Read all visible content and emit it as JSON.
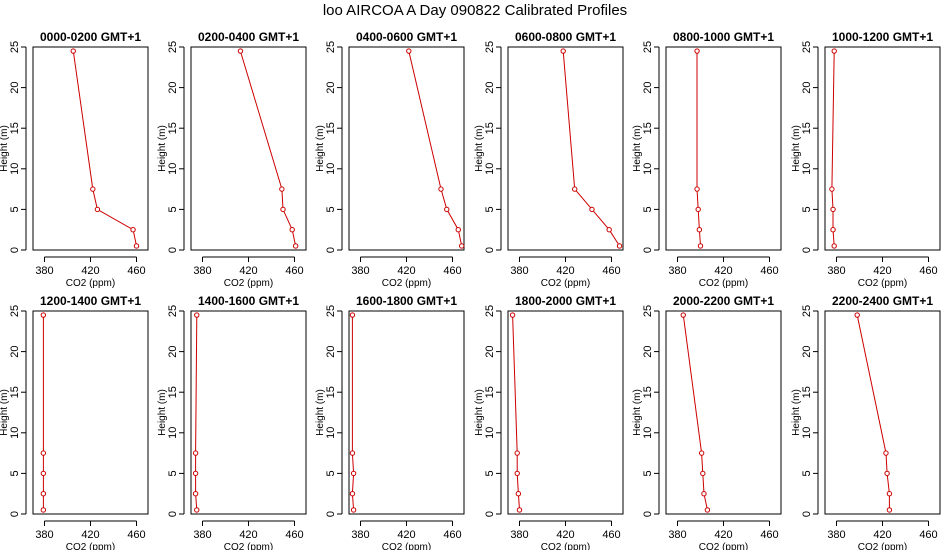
{
  "title": "loo AIRCOA A  Day 090822  Calibrated Profiles",
  "style": {
    "line_color": "#cc0000",
    "point_color": "#cc0000",
    "axis_color": "#000000"
  },
  "chart_data": [
    {
      "type": "line",
      "title": "0000-0200 GMT+1",
      "xlabel": "CO2 (ppm)",
      "ylabel": "Height (m)",
      "xlim": [
        370,
        470
      ],
      "ylim": [
        0,
        25
      ],
      "xticks": [
        380,
        420,
        460
      ],
      "yticks": [
        0,
        5,
        10,
        15,
        20,
        25
      ],
      "x": [
        405,
        422,
        426,
        457,
        460
      ],
      "y": [
        24.5,
        7.5,
        5,
        2.5,
        0.5
      ]
    },
    {
      "type": "line",
      "title": "0200-0400 GMT+1",
      "xlabel": "CO2 (ppm)",
      "ylabel": "Height (m)",
      "xlim": [
        370,
        470
      ],
      "ylim": [
        0,
        25
      ],
      "xticks": [
        380,
        420,
        460
      ],
      "yticks": [
        0,
        5,
        10,
        15,
        20,
        25
      ],
      "x": [
        413,
        449,
        450,
        458,
        461
      ],
      "y": [
        24.5,
        7.5,
        5,
        2.5,
        0.5
      ]
    },
    {
      "type": "line",
      "title": "0400-0600 GMT+1",
      "xlabel": "CO2 (ppm)",
      "ylabel": "Height (m)",
      "xlim": [
        370,
        470
      ],
      "ylim": [
        0,
        25
      ],
      "xticks": [
        380,
        420,
        460
      ],
      "yticks": [
        0,
        5,
        10,
        15,
        20,
        25
      ],
      "x": [
        422,
        450,
        455,
        465,
        468
      ],
      "y": [
        24.5,
        7.5,
        5,
        2.5,
        0.5
      ]
    },
    {
      "type": "line",
      "title": "0600-0800 GMT+1",
      "xlabel": "CO2 (ppm)",
      "ylabel": "Height (m)",
      "xlim": [
        370,
        470
      ],
      "ylim": [
        0,
        25
      ],
      "xticks": [
        380,
        420,
        460
      ],
      "yticks": [
        0,
        5,
        10,
        15,
        20,
        25
      ],
      "x": [
        418,
        428,
        443,
        458,
        467
      ],
      "y": [
        24.5,
        7.5,
        5,
        2.5,
        0.5
      ]
    },
    {
      "type": "line",
      "title": "0800-1000 GMT+1",
      "xlabel": "CO2 (ppm)",
      "ylabel": "Height (m)",
      "xlim": [
        370,
        470
      ],
      "ylim": [
        0,
        25
      ],
      "xticks": [
        380,
        420,
        460
      ],
      "yticks": [
        0,
        5,
        10,
        15,
        20,
        25
      ],
      "x": [
        397,
        397,
        398,
        399,
        400
      ],
      "y": [
        24.5,
        7.5,
        5,
        2.5,
        0.5
      ]
    },
    {
      "type": "line",
      "title": "1000-1200 GMT+1",
      "xlabel": "CO2 (ppm)",
      "ylabel": "Height (m)",
      "xlim": [
        370,
        470
      ],
      "ylim": [
        0,
        25
      ],
      "xticks": [
        380,
        420,
        460
      ],
      "yticks": [
        0,
        5,
        10,
        15,
        20,
        25
      ],
      "x": [
        378,
        376,
        377,
        377,
        378
      ],
      "y": [
        24.5,
        7.5,
        5,
        2.5,
        0.5
      ]
    },
    {
      "type": "line",
      "title": "1200-1400 GMT+1",
      "xlabel": "CO2 (ppm)",
      "ylabel": "Height (m)",
      "xlim": [
        370,
        470
      ],
      "ylim": [
        0,
        25
      ],
      "xticks": [
        380,
        420,
        460
      ],
      "yticks": [
        0,
        5,
        10,
        15,
        20,
        25
      ],
      "x": [
        379,
        379,
        379,
        379,
        379
      ],
      "y": [
        24.5,
        7.5,
        5,
        2.5,
        0.5
      ]
    },
    {
      "type": "line",
      "title": "1400-1600 GMT+1",
      "xlabel": "CO2 (ppm)",
      "ylabel": "Height (m)",
      "xlim": [
        370,
        470
      ],
      "ylim": [
        0,
        25
      ],
      "xticks": [
        380,
        420,
        460
      ],
      "yticks": [
        0,
        5,
        10,
        15,
        20,
        25
      ],
      "x": [
        375,
        374,
        374,
        374,
        375
      ],
      "y": [
        24.5,
        7.5,
        5,
        2.5,
        0.5
      ]
    },
    {
      "type": "line",
      "title": "1600-1800 GMT+1",
      "xlabel": "CO2 (ppm)",
      "ylabel": "Height (m)",
      "xlim": [
        370,
        470
      ],
      "ylim": [
        0,
        25
      ],
      "xticks": [
        380,
        420,
        460
      ],
      "yticks": [
        0,
        5,
        10,
        15,
        20,
        25
      ],
      "x": [
        373,
        373,
        374,
        373,
        374
      ],
      "y": [
        24.5,
        7.5,
        5,
        2.5,
        0.5
      ]
    },
    {
      "type": "line",
      "title": "1800-2000 GMT+1",
      "xlabel": "CO2 (ppm)",
      "ylabel": "Height (m)",
      "xlim": [
        370,
        470
      ],
      "ylim": [
        0,
        25
      ],
      "xticks": [
        380,
        420,
        460
      ],
      "yticks": [
        0,
        5,
        10,
        15,
        20,
        25
      ],
      "x": [
        374,
        378,
        378,
        379,
        380
      ],
      "y": [
        24.5,
        7.5,
        5,
        2.5,
        0.5
      ]
    },
    {
      "type": "line",
      "title": "2000-2200 GMT+1",
      "xlabel": "CO2 (ppm)",
      "ylabel": "Height (m)",
      "xlim": [
        370,
        470
      ],
      "ylim": [
        0,
        25
      ],
      "xticks": [
        380,
        420,
        460
      ],
      "yticks": [
        0,
        5,
        10,
        15,
        20,
        25
      ],
      "x": [
        385,
        401,
        402,
        403,
        406
      ],
      "y": [
        24.5,
        7.5,
        5,
        2.5,
        0.5
      ]
    },
    {
      "type": "line",
      "title": "2200-2400 GMT+1",
      "xlabel": "CO2 (ppm)",
      "ylabel": "Height (m)",
      "xlim": [
        370,
        470
      ],
      "ylim": [
        0,
        25
      ],
      "xticks": [
        380,
        420,
        460
      ],
      "yticks": [
        0,
        5,
        10,
        15,
        20,
        25
      ],
      "x": [
        398,
        423,
        424,
        426,
        426
      ],
      "y": [
        24.5,
        7.5,
        5,
        2.5,
        0.5
      ]
    }
  ]
}
